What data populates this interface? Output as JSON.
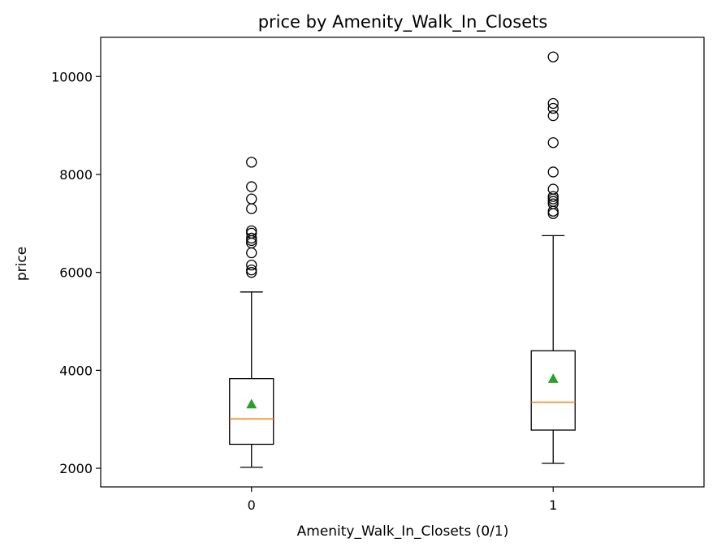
{
  "chart_data": {
    "type": "box",
    "title": "price by Amenity_Walk_In_Closets",
    "xlabel": "Amenity_Walk_In_Closets (0/1)",
    "ylabel": "price",
    "ylim": [
      1620,
      10800
    ],
    "yticks": [
      2000,
      4000,
      6000,
      8000,
      10000
    ],
    "grid": false,
    "categories": [
      "0",
      "1"
    ],
    "boxes": [
      {
        "category": "0",
        "whisker_low": 2020,
        "q1": 2490,
        "median": 3010,
        "q3": 3830,
        "whisker_high": 5600,
        "mean": 3310,
        "outliers": [
          6000,
          6050,
          6150,
          6400,
          6600,
          6650,
          6700,
          6800,
          6850,
          7300,
          7500,
          7750,
          8250
        ]
      },
      {
        "category": "1",
        "whisker_low": 2100,
        "q1": 2780,
        "median": 3350,
        "q3": 4400,
        "whisker_high": 6750,
        "mean": 3830,
        "outliers": [
          7200,
          7250,
          7400,
          7450,
          7500,
          7550,
          7700,
          8050,
          8650,
          9200,
          9350,
          9450,
          10400
        ]
      }
    ],
    "colors": {
      "box": "#000000",
      "median": "#ff7f0e",
      "mean": "#2ca02c",
      "outlier": "#000000"
    }
  }
}
